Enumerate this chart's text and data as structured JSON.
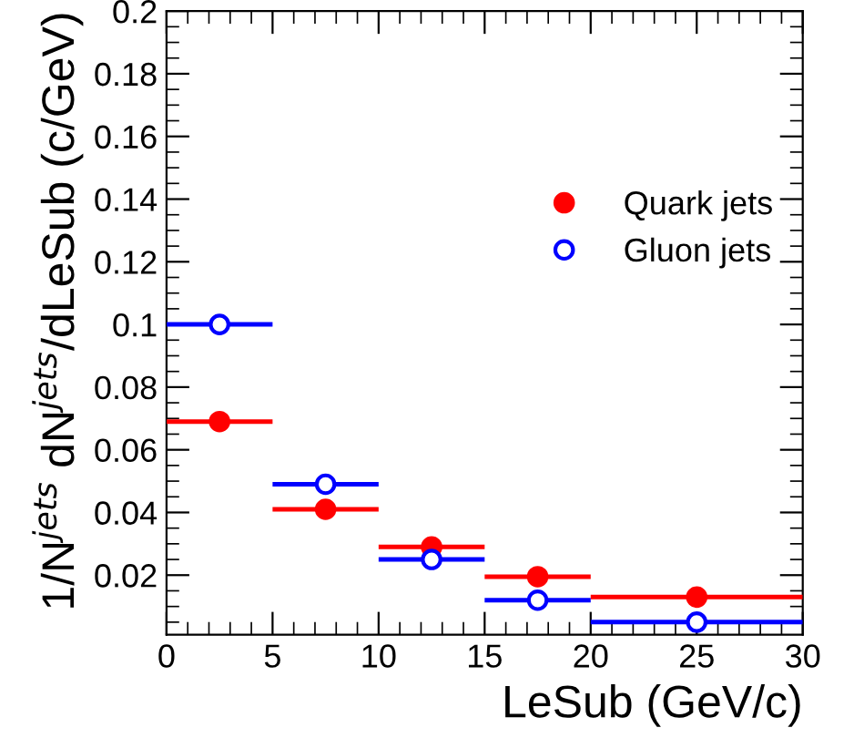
{
  "chart_data": {
    "type": "scatter",
    "xlabel": "LeSub (GeV/c)",
    "ylabel": "1/N$^{jets}$ dN$^{jets}$/dLeSub (c/GeV)",
    "x": [
      2.5,
      7.5,
      12.5,
      17.5,
      25
    ],
    "series": [
      {
        "name": "Quark jets",
        "color": "#ff0000",
        "values": [
          0.069,
          0.041,
          0.029,
          0.0195,
          0.013
        ],
        "xerrors": [
          2.5,
          2.5,
          2.5,
          2.5,
          5
        ]
      },
      {
        "name": "Gluon jets",
        "color": "#0000ff",
        "values": [
          0.1,
          0.049,
          0.025,
          0.012,
          0.005
        ],
        "xerrors": [
          2.5,
          2.5,
          2.5,
          2.5,
          5
        ]
      }
    ],
    "xlim": [
      0,
      30
    ],
    "xticks": [
      0,
      5,
      10,
      15,
      20,
      25,
      30
    ],
    "ylim": [
      0.001,
      0.2
    ],
    "yticks": [
      0.02,
      0.04,
      0.06,
      0.08,
      0.1,
      0.12,
      0.14,
      0.16,
      0.18,
      0.2
    ],
    "marker": "circle",
    "legend": "right",
    "grid": false
  }
}
